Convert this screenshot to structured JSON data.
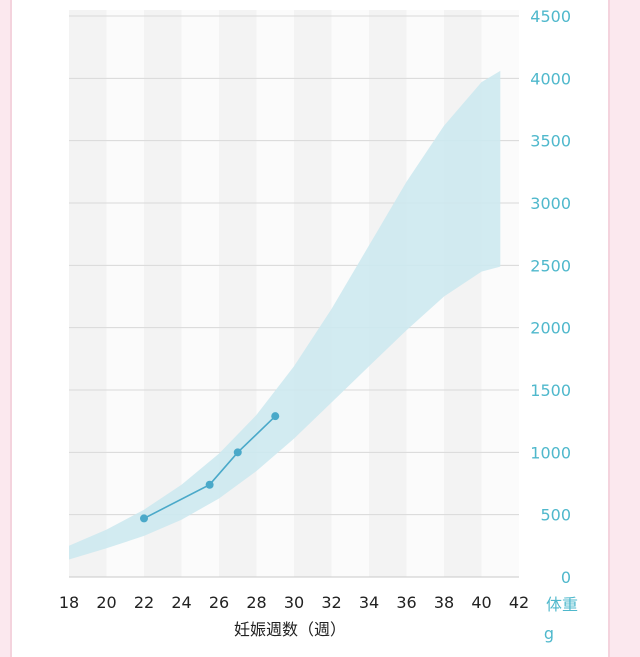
{
  "chart_data": {
    "type": "area",
    "xlabel": "妊娠週数（週）",
    "ylabel": "体重",
    "yunit": "g",
    "xlim": [
      18,
      42
    ],
    "ylim": [
      0,
      4500
    ],
    "x_ticks": [
      18,
      20,
      22,
      24,
      26,
      28,
      30,
      32,
      34,
      36,
      38,
      40,
      42
    ],
    "y_ticks": [
      0,
      500,
      1000,
      1500,
      2000,
      2500,
      3000,
      3500,
      4000,
      4500
    ],
    "grid": true,
    "colors": {
      "band": "#cde9f0",
      "series": "#4aa9c9",
      "axis_text": "#4fb8cc",
      "stripe": "#f3f3f3",
      "grid": "#d8d8d8"
    },
    "reference_band": {
      "x": [
        18,
        20,
        22,
        24,
        26,
        28,
        30,
        32,
        34,
        36,
        38,
        40,
        41
      ],
      "upper": [
        250,
        380,
        540,
        740,
        990,
        1300,
        1690,
        2150,
        2660,
        3170,
        3620,
        3970,
        4060
      ],
      "lower": [
        140,
        230,
        330,
        460,
        630,
        850,
        1110,
        1400,
        1690,
        1980,
        2250,
        2450,
        2490
      ]
    },
    "series": [
      {
        "x": [
          22,
          25.5,
          27,
          29
        ],
        "values": [
          470,
          740,
          1000,
          1290
        ]
      }
    ]
  }
}
